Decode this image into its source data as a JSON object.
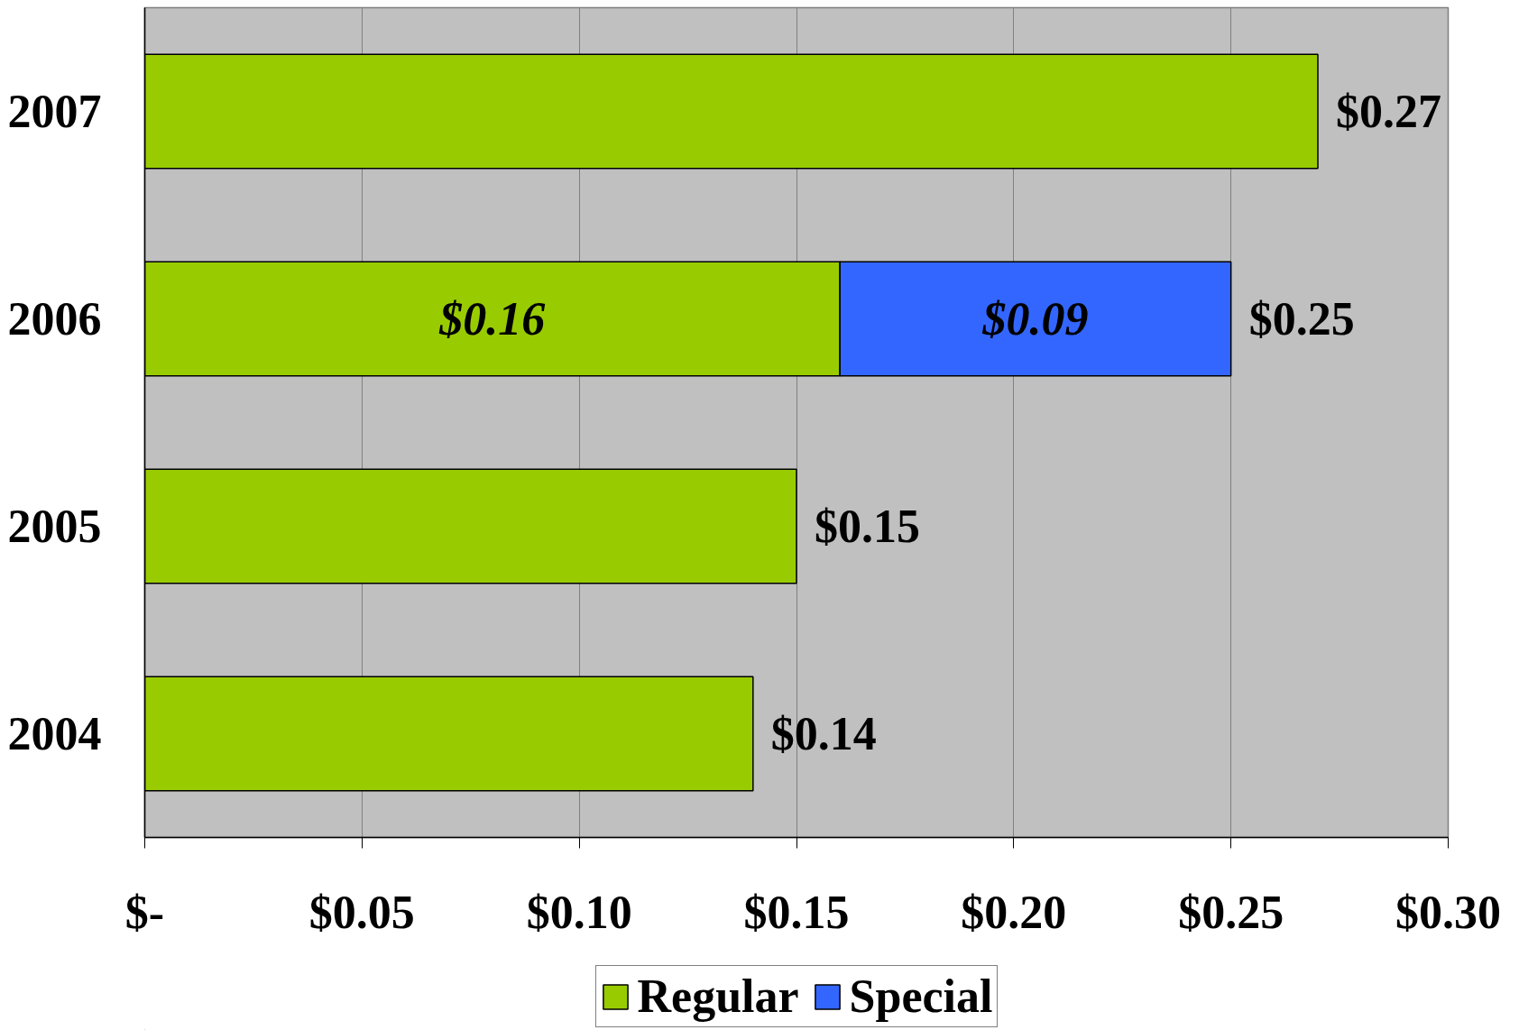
{
  "chart_data": {
    "type": "bar",
    "orientation": "horizontal",
    "stacked": true,
    "categories": [
      "2007",
      "2006",
      "2005",
      "2004"
    ],
    "series": [
      {
        "name": "Regular",
        "color": "#99cc00",
        "values": [
          0.27,
          0.16,
          0.15,
          0.14
        ],
        "value_labels": [
          null,
          "$0.16",
          null,
          null
        ]
      },
      {
        "name": "Special",
        "color": "#3366ff",
        "values": [
          null,
          0.09,
          null,
          null
        ],
        "value_labels": [
          null,
          "$0.09",
          null,
          null
        ]
      }
    ],
    "totals": [
      "$0.27",
      "$0.25",
      "$0.15",
      "$0.14"
    ],
    "xlim": [
      0,
      0.3
    ],
    "xticks": [
      {
        "value": 0,
        "label": "$-"
      },
      {
        "value": 0.05,
        "label": "$0.05"
      },
      {
        "value": 0.1,
        "label": "$0.10"
      },
      {
        "value": 0.15,
        "label": "$0.15"
      },
      {
        "value": 0.2,
        "label": "$0.20"
      },
      {
        "value": 0.25,
        "label": "$0.25"
      },
      {
        "value": 0.3,
        "label": "$0.30"
      }
    ],
    "grid": "x",
    "legend": "bottom"
  }
}
